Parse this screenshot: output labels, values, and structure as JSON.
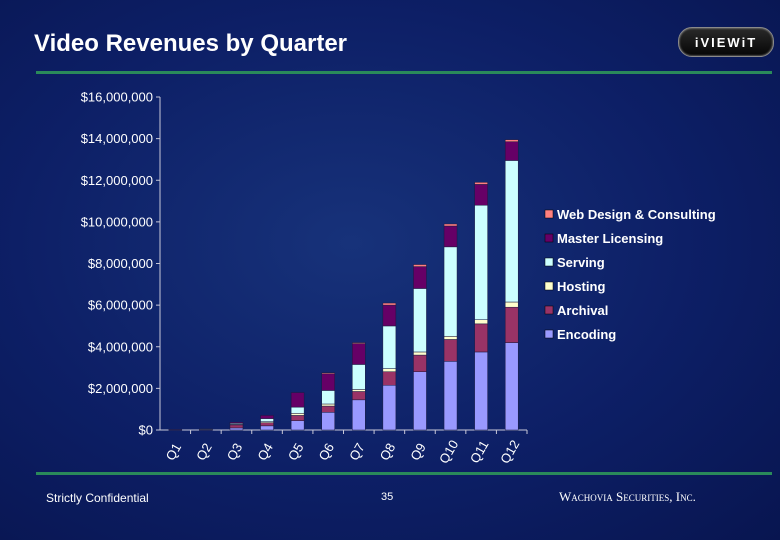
{
  "slide": {
    "title": "Video Revenues by Quarter",
    "logo_text": "iVIEWiT",
    "footer_left": "Strictly Confidential",
    "page_number": "35",
    "footer_right": "Wachovia Securities, Inc."
  },
  "chart_data": {
    "type": "bar",
    "stacked": true,
    "title": "",
    "xlabel": "",
    "ylabel": "",
    "ylim": [
      0,
      16000000
    ],
    "yticks": [
      0,
      2000000,
      4000000,
      6000000,
      8000000,
      10000000,
      12000000,
      14000000,
      16000000
    ],
    "ytick_labels": [
      "$0",
      "$2,000,000",
      "$4,000,000",
      "$6,000,000",
      "$8,000,000",
      "$10,000,000",
      "$12,000,000",
      "$14,000,000",
      "$16,000,000"
    ],
    "grid": false,
    "legend_position": "right",
    "categories": [
      "Q1",
      "Q2",
      "Q3",
      "Q4",
      "Q5",
      "Q6",
      "Q7",
      "Q8",
      "Q9",
      "Q10",
      "Q11",
      "Q12"
    ],
    "series": [
      {
        "name": "Encoding",
        "color": "#9999ff",
        "values": [
          0,
          10000,
          100000,
          200000,
          450000,
          850000,
          1450000,
          2150000,
          2800000,
          3300000,
          3750000,
          4200000
        ]
      },
      {
        "name": "Archival",
        "color": "#993366",
        "values": [
          20000,
          30000,
          150000,
          150000,
          250000,
          300000,
          400000,
          650000,
          800000,
          1050000,
          1350000,
          1700000
        ]
      },
      {
        "name": "Hosting",
        "color": "#ffffcc",
        "values": [
          0,
          0,
          20000,
          50000,
          100000,
          100000,
          100000,
          150000,
          150000,
          150000,
          200000,
          250000
        ]
      },
      {
        "name": "Serving",
        "color": "#ccffff",
        "values": [
          0,
          10000,
          50000,
          150000,
          300000,
          650000,
          1200000,
          2050000,
          3050000,
          4300000,
          5500000,
          6800000
        ]
      },
      {
        "name": "Master Licensing",
        "color": "#660066",
        "values": [
          0,
          0,
          50000,
          150000,
          700000,
          800000,
          1000000,
          1000000,
          1050000,
          1000000,
          1000000,
          900000
        ]
      },
      {
        "name": "Web Design & Consulting",
        "color": "#ff8080",
        "values": [
          0,
          0,
          0,
          0,
          0,
          50000,
          50000,
          100000,
          100000,
          100000,
          100000,
          100000
        ]
      }
    ]
  }
}
